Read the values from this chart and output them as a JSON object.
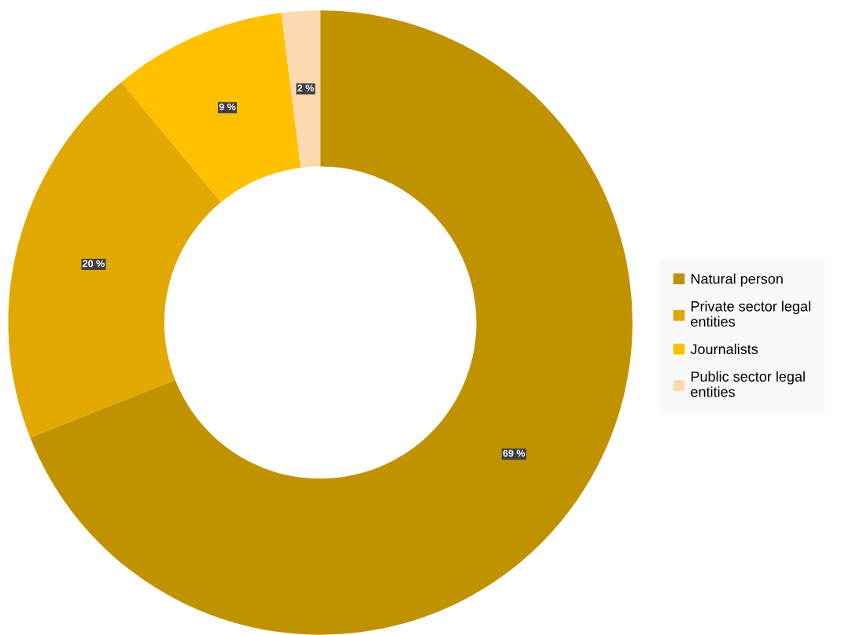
{
  "chart_data": {
    "type": "donut",
    "categories": [
      "Natural person",
      "Private sector legal entities",
      "Journalists",
      "Public sector legal entities"
    ],
    "values": [
      69,
      20,
      9,
      2
    ],
    "colors": [
      "#c09200",
      "#e0a800",
      "#ffc000",
      "#fdd9b0"
    ],
    "value_labels": [
      "69 %",
      "20 %",
      "9 %",
      "2 %"
    ],
    "legend": "right"
  }
}
